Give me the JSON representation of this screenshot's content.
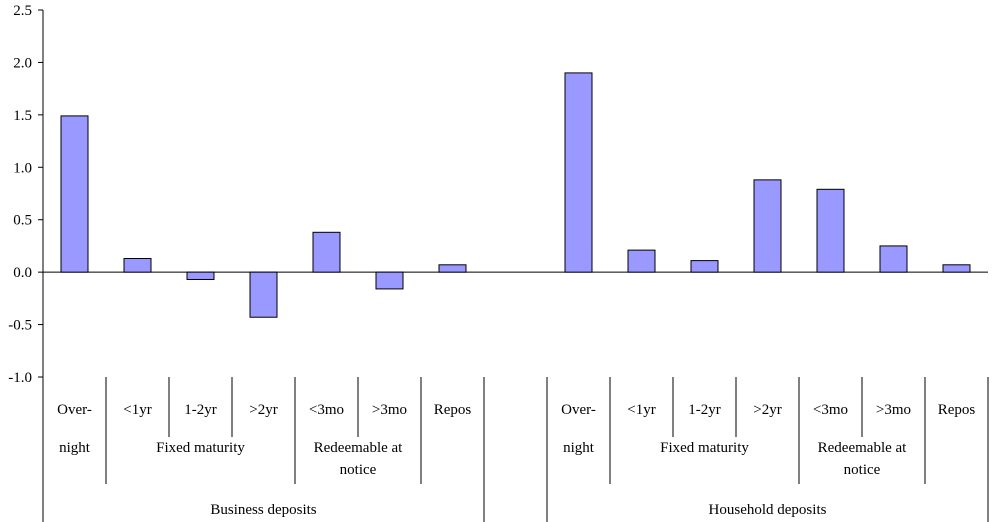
{
  "chart_data": {
    "type": "bar",
    "title": "",
    "xlabel": "",
    "ylabel": "",
    "ylim": [
      -1.0,
      2.5
    ],
    "yticks": [
      "-1.0",
      "-0.5",
      "0.0",
      "0.5",
      "1.0",
      "1.5",
      "2.0",
      "2.5"
    ],
    "grid": false,
    "legend": "none",
    "bar_color": "#9999ff",
    "bar_stroke": "#000000",
    "groups": [
      {
        "name": "Business deposits",
        "categories": [
          {
            "line1": "Over-",
            "line2": "night",
            "value": 1.49
          },
          {
            "line1": "<1yr",
            "value": 0.13
          },
          {
            "line1": "1-2yr",
            "value": -0.07
          },
          {
            "line1": ">2yr",
            "value": -0.43
          },
          {
            "line1": "<3mo",
            "value": 0.38
          },
          {
            "line1": ">3mo",
            "value": -0.16
          },
          {
            "line1": "Repos",
            "value": 0.07
          }
        ],
        "subgroups": [
          {
            "label": "Fixed maturity",
            "label2": ""
          },
          {
            "label": "Redeemable at",
            "label2": "notice"
          }
        ]
      },
      {
        "name": "Household deposits",
        "categories": [
          {
            "line1": "Over-",
            "line2": "night",
            "value": 1.9
          },
          {
            "line1": "<1yr",
            "value": 0.21
          },
          {
            "line1": "1-2yr",
            "value": 0.11
          },
          {
            "line1": ">2yr",
            "value": 0.88
          },
          {
            "line1": "<3mo",
            "value": 0.79
          },
          {
            "line1": ">3mo",
            "value": 0.25
          },
          {
            "line1": "Repos",
            "value": 0.07
          }
        ],
        "subgroups": [
          {
            "label": "Fixed maturity",
            "label2": ""
          },
          {
            "label": "Redeemable at",
            "label2": "notice"
          }
        ]
      }
    ]
  }
}
